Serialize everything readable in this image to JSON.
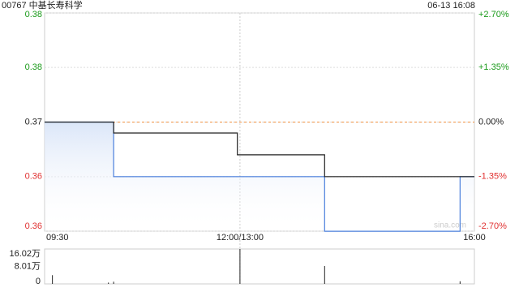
{
  "chart_data": [
    {
      "type": "line",
      "title": "00767 中基长寿科学",
      "subtitle": "06-13 16:08",
      "annotation": "sina.com",
      "xlim": [
        0,
        330
      ],
      "xticks": [
        {
          "value": 0,
          "label": "09:30"
        },
        {
          "value": 150,
          "label": "12:00/13:00"
        },
        {
          "value": 330,
          "label": "16:00"
        }
      ],
      "ylim": [
        0.36001,
        0.37999
      ],
      "yticks": [
        {
          "value": 0.37999,
          "label": "0.38"
        },
        {
          "value": 0.375,
          "label": "0.38"
        },
        {
          "value": 0.37,
          "label": "0.37"
        },
        {
          "value": 0.365,
          "label": "0.36"
        },
        {
          "value": 0.36001,
          "label": "0.36"
        }
      ],
      "y2lim": [
        -2.7,
        2.7
      ],
      "y2ticks": [
        {
          "value": 2.7,
          "label": "+2.70%"
        },
        {
          "value": 1.35,
          "label": "+1.35%"
        },
        {
          "value": 0,
          "label": "0.00%"
        },
        {
          "value": -1.35,
          "label": "-1.35%"
        },
        {
          "value": -2.7,
          "label": "-2.70%"
        }
      ],
      "reference": 0.37,
      "grid": true,
      "series": [
        {
          "color": "#4a7fdc",
          "fill": true,
          "x": [
            0,
            53,
            53,
            215,
            215,
            319,
            319,
            330
          ],
          "values": [
            0.37,
            0.37,
            0.365,
            0.365,
            0.36,
            0.36,
            0.365,
            0.365
          ]
        },
        {
          "color": "#222222",
          "x": [
            0,
            53,
            53,
            148,
            148,
            215,
            215,
            330
          ],
          "values": [
            0.37,
            0.37,
            0.369,
            0.369,
            0.367,
            0.367,
            0.365,
            0.365
          ]
        }
      ]
    },
    {
      "type": "bar",
      "xlim": [
        0,
        330
      ],
      "ylim": [
        0,
        16.02
      ],
      "yticks": [
        {
          "value": 16.02,
          "label": "16.02万"
        },
        {
          "value": 8.01,
          "label": "8.01万"
        },
        0
      ],
      "color": "#222222",
      "x": [
        6,
        49,
        53,
        150,
        215,
        319
      ],
      "values": [
        4.0,
        0.6,
        1.0,
        16.02,
        8.2,
        1.2
      ]
    }
  ]
}
